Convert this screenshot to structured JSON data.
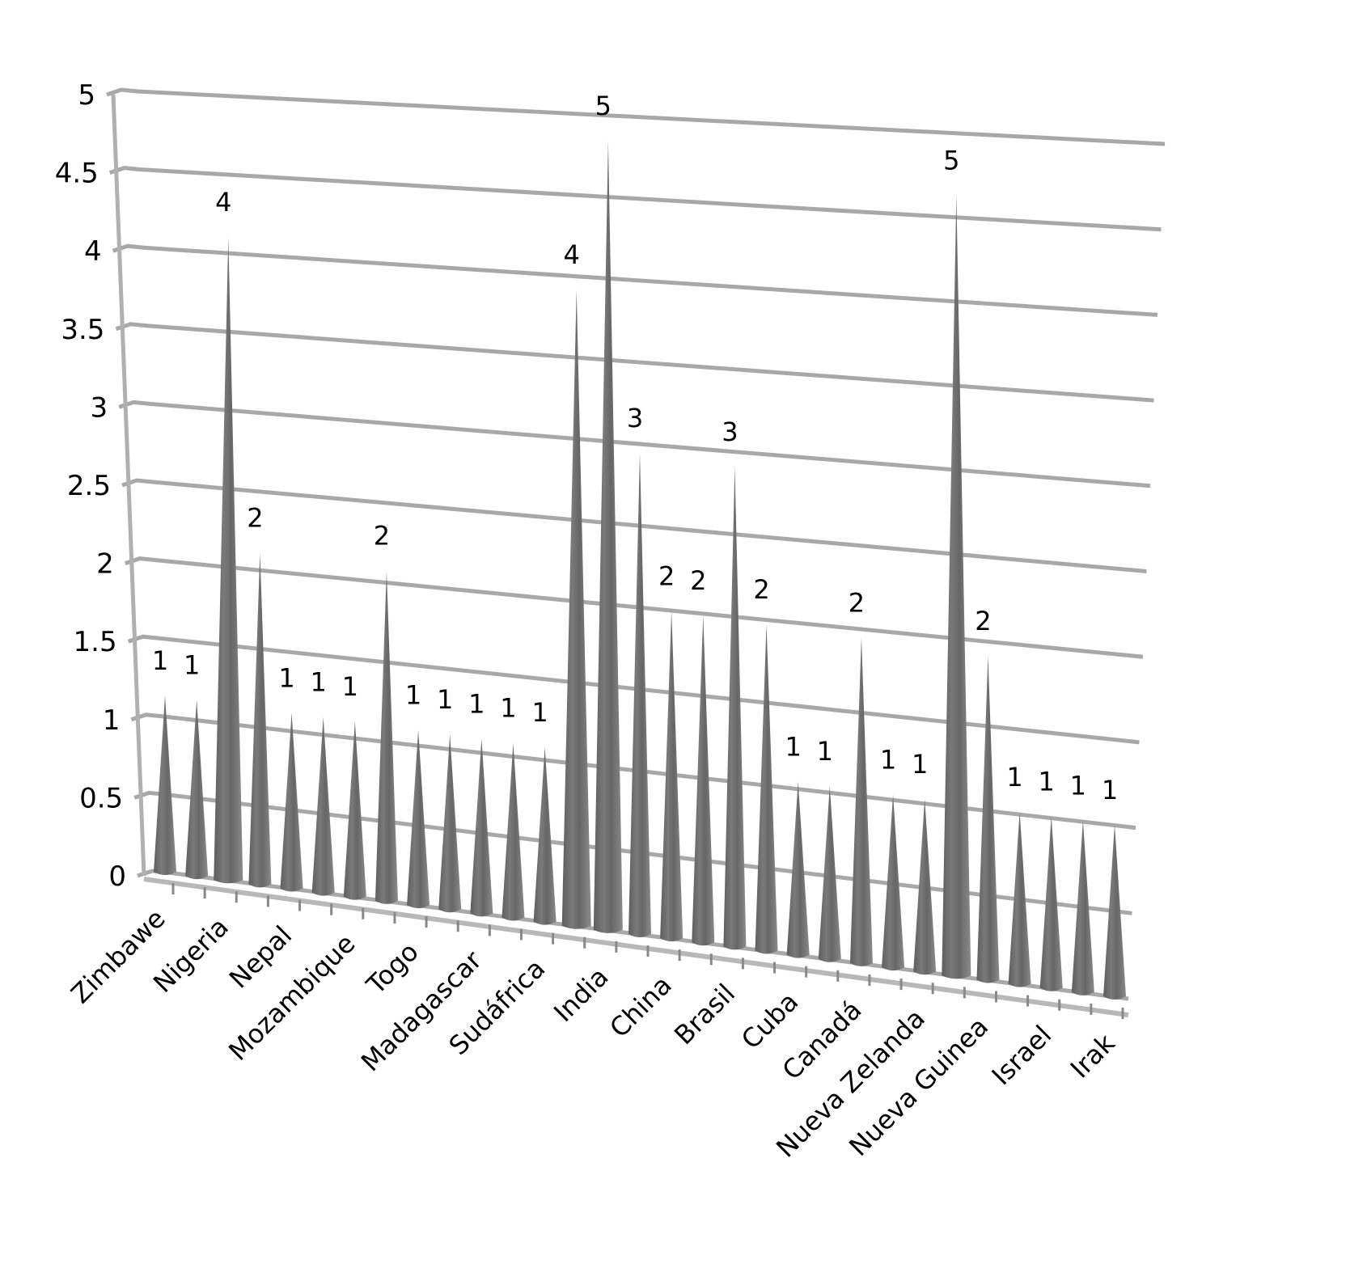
{
  "chart_data": {
    "type": "bar",
    "subtype": "3d-cone",
    "title": "",
    "xlabel": "",
    "ylabel": "",
    "ylim": [
      0,
      5
    ],
    "yticks": [
      "0",
      "0.5",
      "1",
      "1.5",
      "2",
      "2.5",
      "3",
      "3.5",
      "4",
      "4.5",
      "5"
    ],
    "grid": true,
    "legend": null,
    "categories": [
      "Zimbawe",
      "",
      "Nigeria",
      "",
      "Nepal",
      "",
      "Mozambique",
      "",
      "Togo",
      "",
      "Madagascar",
      "",
      "Sudáfrica",
      "",
      "India",
      "",
      "China",
      "",
      "Brasil",
      "",
      "Cuba",
      "",
      "Canadá",
      "",
      "Nueva Zelanda",
      "",
      "Nueva Guinea",
      "",
      "Israel",
      "",
      "Irak"
    ],
    "visible_category_labels": [
      "Zimbawe",
      "Nigeria",
      "Nepal",
      "Mozambique",
      "Togo",
      "Madagascar",
      "Sudáfrica",
      "India",
      "China",
      "Brasil",
      "Cuba",
      "Canadá",
      "Nueva Zelanda",
      "Nueva Guinea",
      "Israel",
      "Irak"
    ],
    "values": [
      1,
      1,
      4,
      2,
      1,
      1,
      1,
      2,
      1,
      1,
      1,
      1,
      1,
      4,
      5,
      3,
      2,
      2,
      3,
      2,
      1,
      1,
      2,
      1,
      1,
      5,
      2,
      1,
      1,
      1,
      1
    ],
    "data_labels": [
      "1",
      "1",
      "4",
      "2",
      "1",
      "1",
      "1",
      "2",
      "1",
      "1",
      "1",
      "1",
      "1",
      "4",
      "5",
      "3",
      "2",
      "2",
      "3",
      "2",
      "1",
      "1",
      "2",
      "1",
      "1",
      "5",
      "2",
      "1",
      "1",
      "1",
      "1"
    ],
    "colors": {
      "cone": "#6e6e6e",
      "cone_highlight": "#9a9a9a",
      "gridline": "#a8a8a8",
      "text": "#000000"
    }
  }
}
